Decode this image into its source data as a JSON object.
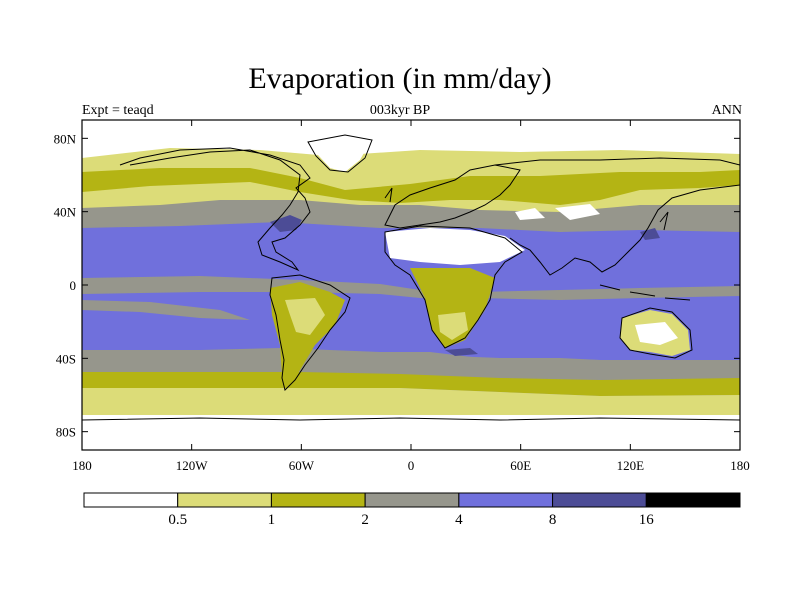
{
  "title": "Evaporation (in mm/day)",
  "subtitle": "003kyr BP",
  "left_label": "Expt = teaqd",
  "right_label": "ANN",
  "colors": {
    "white": "#ffffff",
    "light_yellow": "#dcdc78",
    "olive": "#b4b414",
    "gray": "#96968c",
    "light_blue": "#7070dc",
    "dark_blue": "#4c4c96",
    "black": "#000000",
    "coast": "#000000"
  },
  "axes": {
    "lon_ticks": [
      "180",
      "120W",
      "60W",
      "0",
      "60E",
      "120E",
      "180"
    ],
    "lat_ticks": [
      "80N",
      "40N",
      "0",
      "40S",
      "80S"
    ]
  },
  "legend": {
    "labels": [
      "0.5",
      "1",
      "2",
      "4",
      "8",
      "16"
    ],
    "boxes": [
      "white",
      "light_yellow",
      "olive",
      "gray",
      "light_blue",
      "dark_blue",
      "black"
    ]
  }
}
